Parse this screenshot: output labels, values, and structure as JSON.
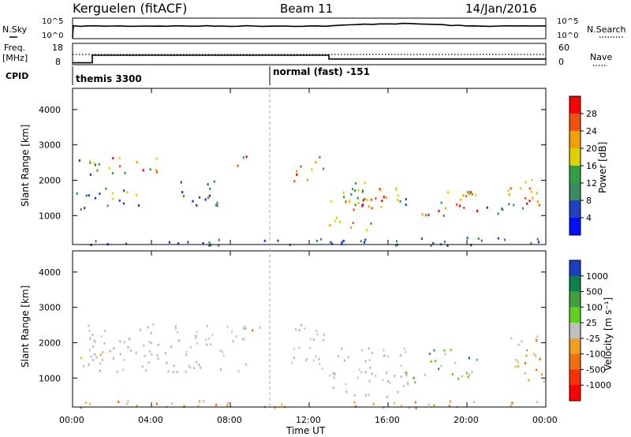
{
  "header": {
    "station": "Kerguelen (fitACF)",
    "beam": "Beam 11",
    "date": "14/Jan/2016"
  },
  "top_panels": {
    "nsky_label": "N.Sky",
    "nsky_ticks": [
      "10^5",
      "10^0"
    ],
    "nsearch_label": "N.Search",
    "nsearch_ticks": [
      "10^5",
      "10^0"
    ],
    "freq_label_1": "Freq.",
    "freq_label_2": "[MHz]",
    "freq_ticks": [
      "18",
      "8"
    ],
    "nave_label": "Nave",
    "nave_ticks": [
      "60",
      "0"
    ],
    "cpid_label": "CPID",
    "cpid_segments": [
      "themis 3300",
      "normal (fast) -151"
    ]
  },
  "power_panel": {
    "ylabel": "Slant Range [km]",
    "colorbar_label": "Power [dB]",
    "colorbar_ticks": [
      "28",
      "24",
      "20",
      "16",
      "12",
      "8",
      "4"
    ],
    "colorbar_colors": [
      "#ff0000",
      "#f05010",
      "#f0a000",
      "#e0d000",
      "#30a040",
      "#3a8a60",
      "#2040c0",
      "#0010ff"
    ]
  },
  "velocity_panel": {
    "ylabel": "Slant Range [km]",
    "colorbar_label": "Velocity [m s⁻¹]",
    "colorbar_ticks": [
      "1000",
      "500",
      "100",
      "25",
      "-25",
      "-100",
      "-500",
      "-1000"
    ],
    "colorbar_colors": [
      "#1a40c0",
      "#0a8050",
      "#40a040",
      "#60d020",
      "#c0c0c0",
      "#f0a020",
      "#f07010",
      "#ff3000",
      "#ff0000"
    ]
  },
  "chart_data": {
    "type": "heatmap",
    "xlabel": "Time UT",
    "x_ticks": [
      "00:00",
      "04:00",
      "08:00",
      "12:00",
      "16:00",
      "20:00",
      "00:00"
    ],
    "y_ticks": [
      "4000",
      "3000",
      "2000",
      "1000"
    ],
    "ylim": [
      180,
      4600
    ],
    "xlim_hours": [
      0,
      24
    ],
    "cpid_change_hour": 10.0,
    "freq_mhz": [
      [
        0,
        9
      ],
      [
        1.0,
        13
      ],
      [
        13.0,
        11
      ]
    ],
    "power_regions": [
      {
        "t0": 0.1,
        "t1": 2.0,
        "r0": 2100,
        "r1": 2700,
        "level": "mid"
      },
      {
        "t0": 2.0,
        "t1": 4.5,
        "r0": 2200,
        "r1": 2700,
        "level": "high"
      },
      {
        "t0": 5.0,
        "t1": 7.5,
        "r0": 1300,
        "r1": 2000,
        "level": "low"
      },
      {
        "t0": 7.5,
        "t1": 8.8,
        "r0": 2400,
        "r1": 2700,
        "level": "high"
      },
      {
        "t0": 0.1,
        "t1": 3.5,
        "r0": 1200,
        "r1": 1800,
        "level": "mid"
      },
      {
        "t0": 11.2,
        "t1": 12.8,
        "r0": 2000,
        "r1": 2700,
        "level": "high"
      },
      {
        "t0": 13.0,
        "t1": 16.0,
        "r0": 600,
        "r1": 1800,
        "level": "high"
      },
      {
        "t0": 14.0,
        "t1": 17.0,
        "r0": 1300,
        "r1": 2000,
        "level": "mid"
      },
      {
        "t0": 17.5,
        "t1": 20.5,
        "r0": 1000,
        "r1": 1800,
        "level": "high"
      },
      {
        "t0": 20.5,
        "t1": 22.0,
        "r0": 1000,
        "r1": 1300,
        "level": "low"
      },
      {
        "t0": 22.0,
        "t1": 24.0,
        "r0": 1100,
        "r1": 2200,
        "level": "high"
      },
      {
        "t0": 0.0,
        "t1": 24.0,
        "r0": 180,
        "r1": 400,
        "level": "low"
      }
    ],
    "velocity_regions": [
      {
        "t0": 0.1,
        "t1": 2.0,
        "r0": 1500,
        "r1": 1800,
        "level": "neg"
      },
      {
        "t0": 0.5,
        "t1": 9.0,
        "r0": 1200,
        "r1": 2600,
        "level": "zero"
      },
      {
        "t0": 9.0,
        "t1": 9.6,
        "r0": 2200,
        "r1": 2600,
        "level": "neg"
      },
      {
        "t0": 11.0,
        "t1": 13.0,
        "r0": 1300,
        "r1": 2600,
        "level": "zero"
      },
      {
        "t0": 13.0,
        "t1": 17.0,
        "r0": 500,
        "r1": 1900,
        "level": "zero"
      },
      {
        "t0": 16.0,
        "t1": 17.5,
        "r0": 700,
        "r1": 1200,
        "level": "pos"
      },
      {
        "t0": 17.8,
        "t1": 20.5,
        "r0": 1000,
        "r1": 1900,
        "level": "pos2"
      },
      {
        "t0": 22.2,
        "t1": 24.0,
        "r0": 900,
        "r1": 2200,
        "level": "neg"
      },
      {
        "t0": 0.0,
        "t1": 24.0,
        "r0": 180,
        "r1": 380,
        "level": "neg"
      }
    ]
  }
}
